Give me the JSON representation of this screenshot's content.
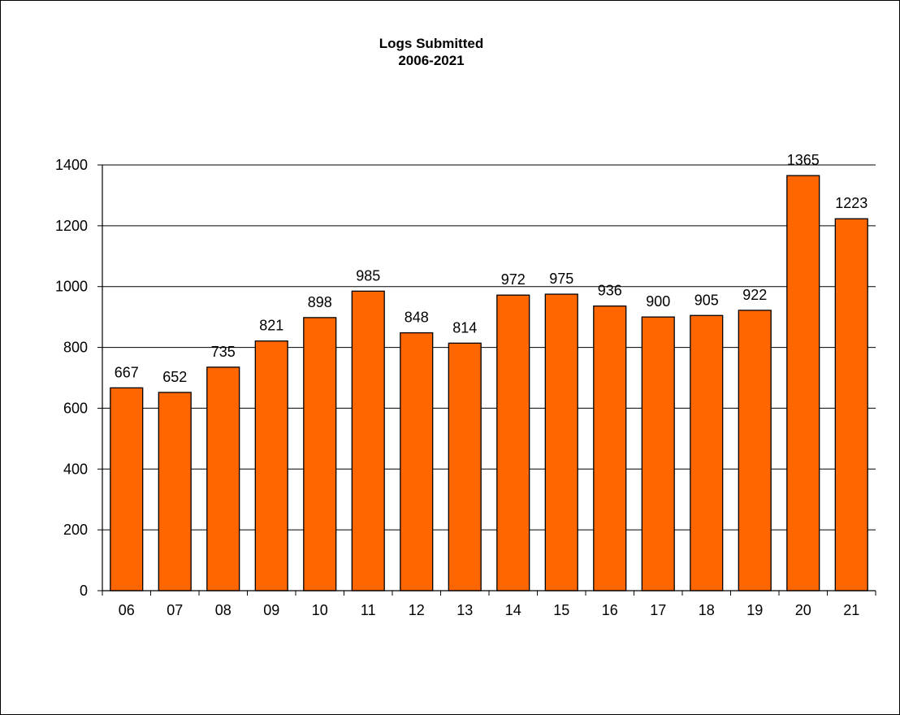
{
  "chart_data": {
    "type": "bar",
    "title": "Logs Submitted",
    "subtitle": "2006-2021",
    "categories": [
      "06",
      "07",
      "08",
      "09",
      "10",
      "11",
      "12",
      "13",
      "14",
      "15",
      "16",
      "17",
      "18",
      "19",
      "20",
      "21"
    ],
    "values": [
      667,
      652,
      735,
      821,
      898,
      985,
      848,
      814,
      972,
      975,
      936,
      900,
      905,
      922,
      1365,
      1223
    ],
    "data_labels": [
      "667",
      "652",
      "735",
      "821",
      "898",
      "985",
      "848",
      "814",
      "972",
      "975",
      "936",
      "900",
      "905",
      "922",
      "1365",
      "1223"
    ],
    "y_ticks": [
      0,
      200,
      400,
      600,
      800,
      1000,
      1200,
      1400
    ],
    "y_tick_labels": [
      "0",
      "200",
      "400",
      "600",
      "800",
      "1000",
      "1200",
      "1400"
    ],
    "ylim": [
      0,
      1400
    ],
    "grid": true,
    "legend": "none",
    "bar_color": "#FF6600",
    "bar_edge_color": "#000000"
  }
}
